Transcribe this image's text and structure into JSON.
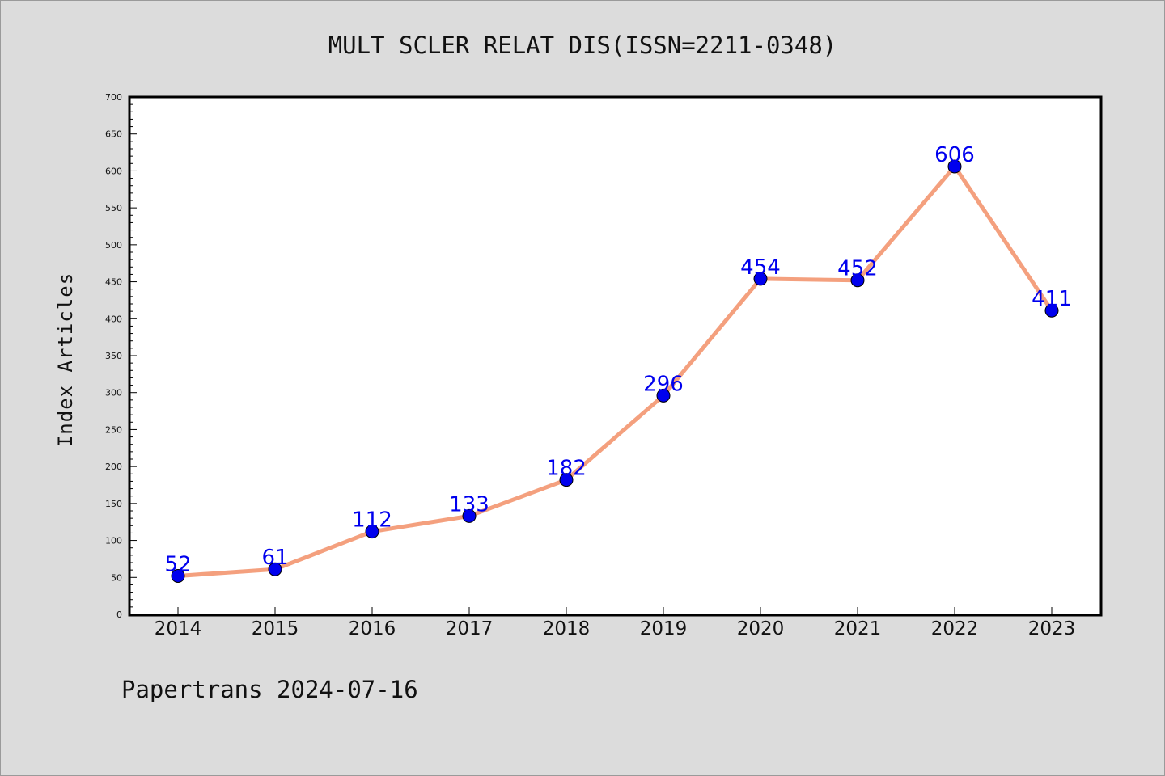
{
  "chart_data": {
    "type": "line",
    "title": "MULT SCLER RELAT DIS(ISSN=2211-0348)",
    "xlabel": "",
    "ylabel": "Index Articles",
    "categories": [
      "2014",
      "2015",
      "2016",
      "2017",
      "2018",
      "2019",
      "2020",
      "2021",
      "2022",
      "2023"
    ],
    "values": [
      52,
      61,
      112,
      133,
      182,
      296,
      454,
      452,
      606,
      411
    ],
    "ylim": [
      0,
      700
    ],
    "yticks": [
      0,
      50,
      100,
      150,
      200,
      250,
      300,
      350,
      400,
      450,
      500,
      550,
      600,
      650,
      700
    ],
    "grid": false,
    "legend": "none",
    "line_color": "#f4a07e",
    "marker_color": "#0000ee",
    "label_color": "#0000ee"
  },
  "footer": {
    "text": "Papertrans 2024-07-16"
  }
}
